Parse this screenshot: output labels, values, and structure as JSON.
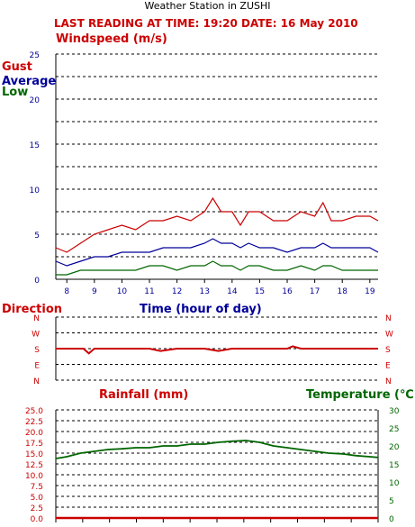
{
  "site_title": "Weather Station in ZUSHI",
  "reading_line": "LAST READING AT TIME: 19:20  DATE: 16 May 2010",
  "colors": {
    "red": "#cc0000",
    "blue": "#000099",
    "green": "#006600"
  },
  "chart_data": [
    {
      "type": "line",
      "title": "Windspeed (m/s)",
      "xlabel": "Time (hour of day)",
      "ylabel": "",
      "x_ticks": [
        "8",
        "9",
        "10",
        "11",
        "12",
        "13",
        "14",
        "15",
        "16",
        "17",
        "18",
        "19"
      ],
      "xlim": [
        7.6,
        19.3
      ],
      "ylim": [
        0,
        25
      ],
      "y_ticks": [
        "0",
        "5",
        "10",
        "15",
        "20",
        "25"
      ],
      "grid": true,
      "series": [
        {
          "name": "Gust",
          "color": "#cc0000",
          "x": [
            7.6,
            8.0,
            8.5,
            9.0,
            9.5,
            10.0,
            10.5,
            11.0,
            11.5,
            12.0,
            12.5,
            13.0,
            13.3,
            13.6,
            14.0,
            14.3,
            14.6,
            15.0,
            15.5,
            16.0,
            16.5,
            17.0,
            17.3,
            17.6,
            18.0,
            18.5,
            19.0,
            19.3
          ],
          "y": [
            3.5,
            3,
            4,
            5,
            5.5,
            6,
            5.5,
            6.5,
            6.5,
            7,
            6.5,
            7.5,
            9,
            7.5,
            7.5,
            6,
            7.5,
            7.5,
            6.5,
            6.5,
            7.5,
            7,
            8.5,
            6.5,
            6.5,
            7,
            7,
            6.5
          ]
        },
        {
          "name": "Average",
          "color": "#000099",
          "x": [
            7.6,
            8.0,
            8.5,
            9.0,
            9.5,
            10.0,
            10.5,
            11.0,
            11.5,
            12.0,
            12.5,
            13.0,
            13.3,
            13.6,
            14.0,
            14.3,
            14.6,
            15.0,
            15.5,
            16.0,
            16.5,
            17.0,
            17.3,
            17.6,
            18.0,
            18.5,
            19.0,
            19.3
          ],
          "y": [
            2,
            1.5,
            2,
            2.5,
            2.5,
            3,
            3,
            3,
            3.5,
            3.5,
            3.5,
            4,
            4.5,
            4,
            4,
            3.5,
            4,
            3.5,
            3.5,
            3,
            3.5,
            3.5,
            4,
            3.5,
            3.5,
            3.5,
            3.5,
            3
          ]
        },
        {
          "name": "Low",
          "color": "#006600",
          "x": [
            7.6,
            8.0,
            8.5,
            9.0,
            9.5,
            10.0,
            10.5,
            11.0,
            11.5,
            12.0,
            12.5,
            13.0,
            13.3,
            13.6,
            14.0,
            14.3,
            14.6,
            15.0,
            15.5,
            16.0,
            16.5,
            17.0,
            17.3,
            17.6,
            18.0,
            18.5,
            19.0,
            19.3
          ],
          "y": [
            0.5,
            0.5,
            1,
            1,
            1,
            1,
            1,
            1.5,
            1.5,
            1,
            1.5,
            1.5,
            2,
            1.5,
            1.5,
            1,
            1.5,
            1.5,
            1,
            1,
            1.5,
            1,
            1.5,
            1.5,
            1,
            1,
            1,
            1
          ]
        }
      ]
    },
    {
      "type": "line",
      "title": "Direction",
      "xlabel": "",
      "ylabel": "",
      "y_ticks": [
        "N",
        "W",
        "S",
        "E",
        "N"
      ],
      "x_ticks": [],
      "xlim": [
        7.6,
        19.3
      ],
      "ylim": [
        0,
        4
      ],
      "grid": true,
      "series": [
        {
          "name": "",
          "color": "#cc0000",
          "x": [
            7.6,
            8.0,
            8.6,
            8.8,
            9.0,
            10.0,
            11.0,
            11.4,
            12.0,
            13.0,
            13.5,
            14.0,
            15.0,
            16.0,
            16.2,
            16.5,
            17.0,
            18.0,
            19.0,
            19.3
          ],
          "y": [
            2,
            2,
            2,
            2.3,
            2,
            2,
            2,
            2.15,
            2,
            2,
            2.15,
            2,
            2,
            2,
            1.85,
            2,
            2,
            2,
            2,
            2
          ]
        }
      ]
    },
    {
      "type": "line",
      "title": "",
      "xlabel": "",
      "ylabel": "",
      "x_ticks": [],
      "xlim": [
        7.6,
        19.3
      ],
      "series_labels": {
        "rainfall": "Rainfall (mm)",
        "temperature": "Temperature (℃"
      },
      "left_axis": {
        "ticks": [
          "0.0",
          "2.5",
          "5.0",
          "7.5",
          "10.0",
          "12.5",
          "15.0",
          "17.5",
          "20.0",
          "22.5",
          "25.0"
        ],
        "ylim": [
          0,
          25
        ]
      },
      "right_axis": {
        "ticks": [
          "0",
          "5",
          "10",
          "15",
          "20",
          "25",
          "30"
        ],
        "ylim": [
          0,
          30
        ]
      },
      "grid": true,
      "series": [
        {
          "name": "Rainfall (mm)",
          "color": "#cc0000",
          "axis": "left",
          "x": [
            7.6,
            19.3
          ],
          "y": [
            0,
            0
          ]
        },
        {
          "name": "Temperature (℃",
          "color": "#006600",
          "axis": "right",
          "x": [
            7.6,
            8.0,
            8.5,
            9.0,
            9.5,
            10.0,
            10.5,
            11.0,
            11.5,
            12.0,
            12.5,
            13.0,
            13.5,
            14.0,
            14.5,
            15.0,
            15.5,
            16.0,
            16.5,
            17.0,
            17.5,
            18.0,
            18.5,
            19.0,
            19.3
          ],
          "y": [
            16.5,
            17,
            18,
            18.5,
            19,
            19.2,
            19.5,
            19.5,
            20,
            20,
            20.5,
            20.5,
            21,
            21.3,
            21.5,
            21,
            20,
            19.5,
            19,
            18.5,
            18,
            17.8,
            17.3,
            17,
            16.8
          ]
        }
      ]
    }
  ]
}
